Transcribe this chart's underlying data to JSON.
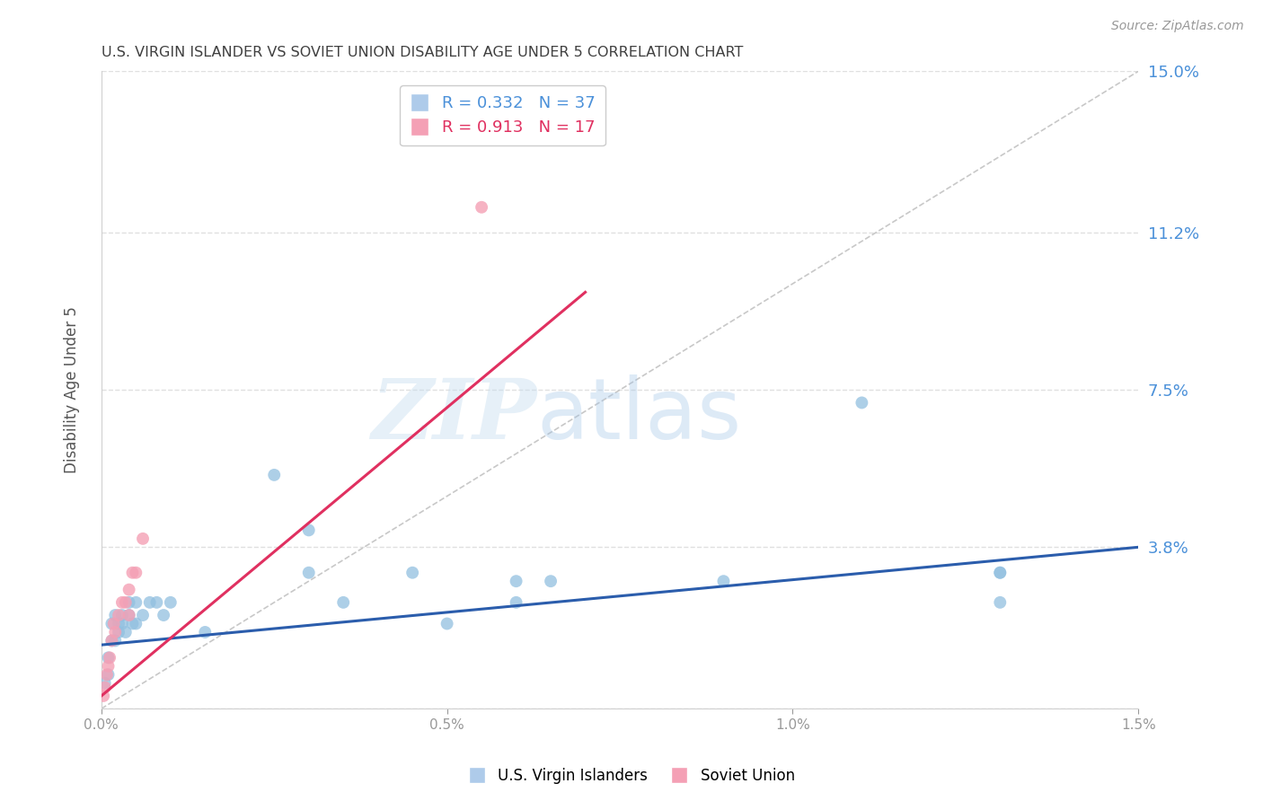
{
  "title": "U.S. VIRGIN ISLANDER VS SOVIET UNION DISABILITY AGE UNDER 5 CORRELATION CHART",
  "source": "Source: ZipAtlas.com",
  "ylabel": "Disability Age Under 5",
  "legend_labels": [
    "U.S. Virgin Islanders",
    "Soviet Union"
  ],
  "r_blue": 0.332,
  "n_blue": 37,
  "r_pink": 0.913,
  "n_pink": 17,
  "xlim": [
    0.0,
    0.015
  ],
  "ylim": [
    0.0,
    0.15
  ],
  "yticks": [
    0.0,
    0.038,
    0.075,
    0.112,
    0.15
  ],
  "ytick_labels": [
    "",
    "3.8%",
    "7.5%",
    "11.2%",
    "15.0%"
  ],
  "xtick_labels": [
    "0.0%",
    "0.5%",
    "1.0%",
    "1.5%"
  ],
  "xticks": [
    0.0,
    0.005,
    0.01,
    0.015
  ],
  "blue_scatter_x": [
    5e-05,
    0.0001,
    0.0001,
    0.00015,
    0.00015,
    0.0002,
    0.0002,
    0.00025,
    0.00025,
    0.0003,
    0.0003,
    0.00035,
    0.0004,
    0.0004,
    0.00045,
    0.0005,
    0.0005,
    0.0006,
    0.0007,
    0.0008,
    0.0009,
    0.001,
    0.0015,
    0.0025,
    0.003,
    0.003,
    0.0035,
    0.0045,
    0.005,
    0.006,
    0.006,
    0.0065,
    0.009,
    0.011,
    0.013,
    0.013,
    0.013
  ],
  "blue_scatter_y": [
    0.006,
    0.008,
    0.012,
    0.016,
    0.02,
    0.016,
    0.022,
    0.018,
    0.02,
    0.02,
    0.022,
    0.018,
    0.022,
    0.025,
    0.02,
    0.02,
    0.025,
    0.022,
    0.025,
    0.025,
    0.022,
    0.025,
    0.018,
    0.055,
    0.042,
    0.032,
    0.025,
    0.032,
    0.02,
    0.025,
    0.03,
    0.03,
    0.03,
    0.072,
    0.032,
    0.025,
    0.032
  ],
  "pink_scatter_x": [
    3e-05,
    5e-05,
    8e-05,
    0.0001,
    0.00012,
    0.00015,
    0.00018,
    0.0002,
    0.00025,
    0.0003,
    0.00035,
    0.0004,
    0.0004,
    0.00045,
    0.0005,
    0.0006,
    0.0055
  ],
  "pink_scatter_y": [
    0.003,
    0.005,
    0.008,
    0.01,
    0.012,
    0.016,
    0.02,
    0.018,
    0.022,
    0.025,
    0.025,
    0.022,
    0.028,
    0.032,
    0.032,
    0.04,
    0.118
  ],
  "blue_line_x": [
    0.0,
    0.015
  ],
  "blue_line_y": [
    0.015,
    0.038
  ],
  "pink_line_x": [
    0.0,
    0.007
  ],
  "pink_line_y": [
    0.003,
    0.098
  ],
  "diag_line_x": [
    0.0,
    0.015
  ],
  "diag_line_y": [
    0.0,
    0.15
  ],
  "watermark_zip": "ZIP",
  "watermark_atlas": "atlas",
  "bg_color": "#ffffff",
  "scatter_blue": "#92c0e0",
  "scatter_pink": "#f4a0b5",
  "line_blue": "#2b5dac",
  "line_pink": "#e03060",
  "diag_color": "#c8c8c8",
  "grid_color": "#e0e0e0",
  "title_color": "#404040",
  "axis_label_color": "#555555",
  "right_tick_color": "#4a90d9",
  "legend_blue_fill": "#aecbea",
  "legend_pink_fill": "#f4a0b5"
}
